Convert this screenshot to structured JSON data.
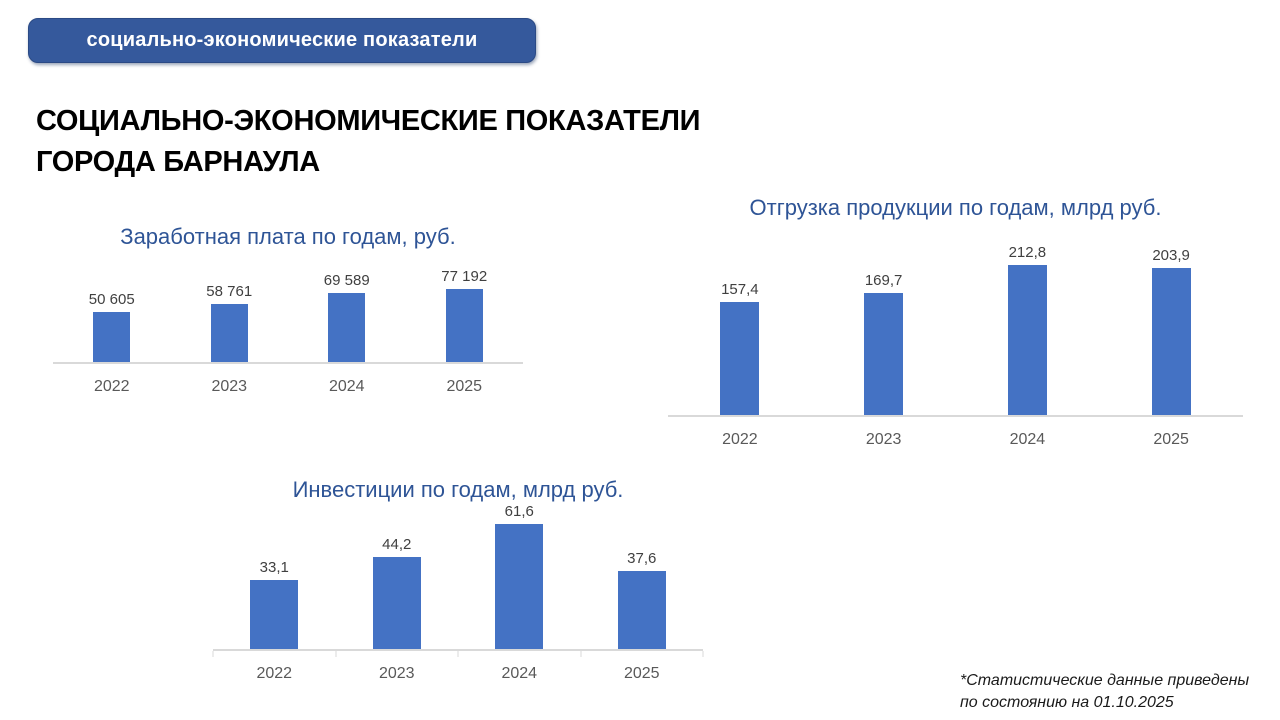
{
  "badge": {
    "label": "социально-экономические показатели"
  },
  "page_title": {
    "line1": "СОЦИАЛЬНО-ЭКОНОМИЧЕСКИЕ ПОКАЗАТЕЛИ",
    "line2": "ГОРОДА БАРНАУЛА"
  },
  "footnote": {
    "line1": "*Статистические данные приведены",
    "line2": "по состоянию на 01.10.2025"
  },
  "colors": {
    "bar": "#4472C4",
    "chart_title": "#2E5496",
    "badge_bg": "#35599C",
    "axis_line": "#D9D9D9",
    "data_label": "#404040",
    "year_label": "#595959"
  },
  "chart_data": [
    {
      "type": "bar",
      "title": "Заработная плата по годам, руб.",
      "categories": [
        "2022",
        "2023",
        "2024",
        "2025"
      ],
      "values": [
        50605,
        58761,
        69589,
        77192
      ],
      "value_labels": [
        "50 605",
        "58 761",
        "69 589",
        "77 192"
      ],
      "xlabel": "",
      "ylabel": "руб.",
      "ylim": [
        0,
        80000
      ],
      "grid": false,
      "legend": "none",
      "data_labels": true,
      "bar_color": "#4472C4"
    },
    {
      "type": "bar",
      "title": "Отгрузка продукции по годам, млрд руб.",
      "categories": [
        "2022",
        "2023",
        "2024",
        "2025"
      ],
      "values": [
        157.4,
        169.7,
        212.8,
        203.9
      ],
      "value_labels": [
        "157,4",
        "169,7",
        "212,8",
        "203,9"
      ],
      "xlabel": "",
      "ylabel": "млрд руб.",
      "ylim": [
        0,
        220
      ],
      "grid": false,
      "legend": "none",
      "data_labels": true,
      "bar_color": "#4472C4"
    },
    {
      "type": "bar",
      "title": "Инвестиции по годам, млрд руб.",
      "categories": [
        "2022",
        "2023",
        "2024",
        "2025"
      ],
      "values": [
        33.1,
        44.2,
        61.6,
        37.6
      ],
      "value_labels": [
        "33,1",
        "44,2",
        "61,6",
        "37,6"
      ],
      "xlabel": "",
      "ylabel": "млрд руб.",
      "ylim": [
        0,
        65
      ],
      "grid": false,
      "legend": "none",
      "data_labels": true,
      "bar_color": "#4472C4"
    }
  ]
}
